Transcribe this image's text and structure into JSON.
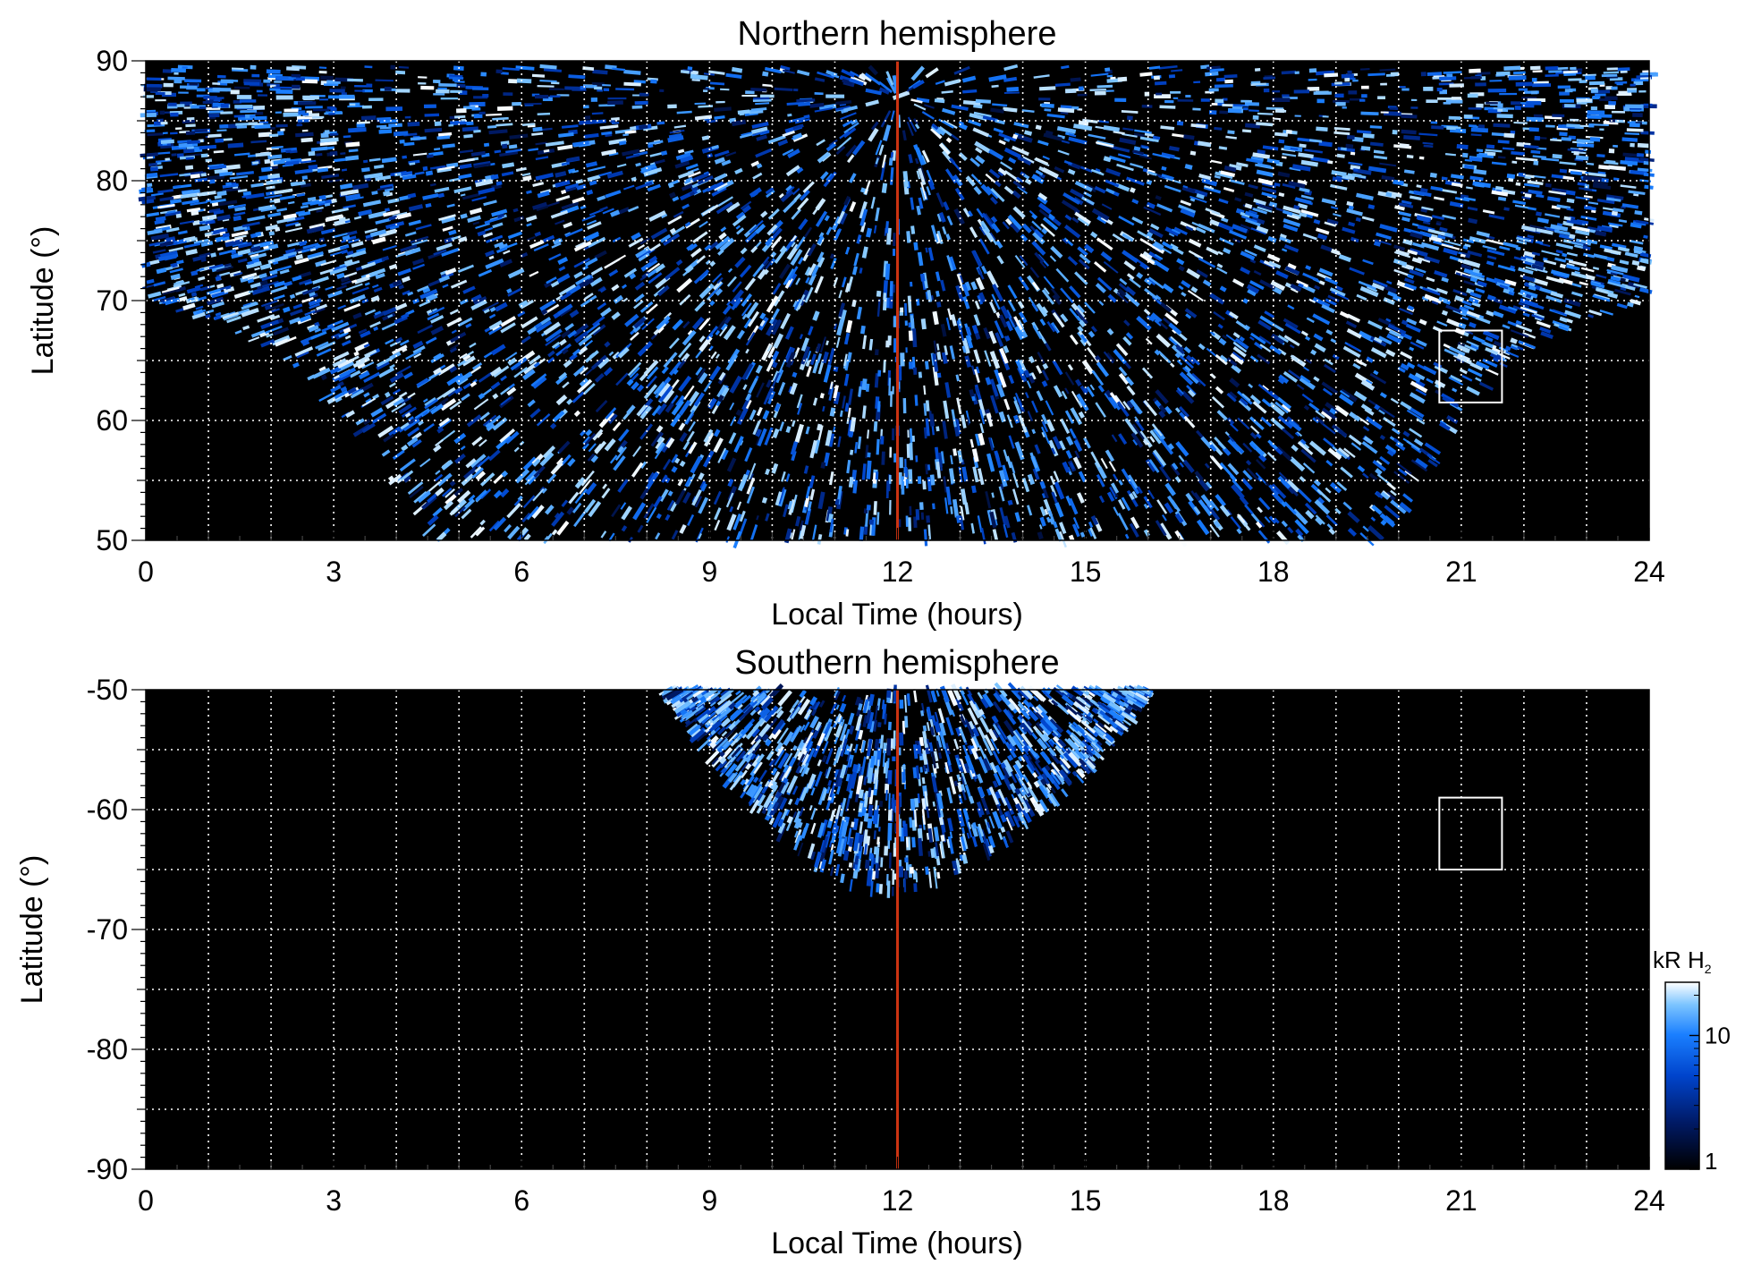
{
  "chart_data": [
    {
      "type": "heatmap",
      "title": "Northern hemisphere",
      "xlabel": "Local Time (hours)",
      "ylabel": "Latitude (°)",
      "xlim": [
        0,
        24
      ],
      "ylim": [
        50,
        90
      ],
      "x_ticks": [
        0,
        3,
        6,
        9,
        12,
        15,
        18,
        21,
        24
      ],
      "x_tick_labels": [
        "0",
        "3",
        "6",
        "9",
        "12",
        "15",
        "18",
        "21",
        "24"
      ],
      "y_ticks": [
        50,
        60,
        70,
        80,
        90
      ],
      "y_tick_labels": [
        "50",
        "60",
        "70",
        "80",
        "90"
      ],
      "grid": true,
      "grid_x_step_hours": 1,
      "grid_y_step_degrees": 5,
      "background_color": "#000000",
      "grid_color": "#ffffff",
      "noon_line": {
        "x": 12,
        "color": "#cc3311"
      },
      "highlight_box": {
        "x": [
          20.65,
          21.65
        ],
        "y": [
          61.5,
          67.5
        ],
        "color": "#ffffff"
      },
      "coverage_boundary": {
        "local_time": [
          0,
          1,
          2,
          3,
          4,
          4.5,
          6,
          8,
          10,
          12,
          14,
          16,
          18,
          19.5,
          20,
          21,
          22,
          23,
          24
        ],
        "latitude": [
          70,
          68.5,
          66,
          61.5,
          54,
          50,
          50,
          50,
          50,
          50,
          50,
          50,
          50,
          50,
          51.5,
          60.5,
          66,
          68.5,
          70
        ]
      }
    },
    {
      "type": "heatmap",
      "title": "Southern hemisphere",
      "xlabel": "Local Time (hours)",
      "ylabel": "Latitude (°)",
      "xlim": [
        0,
        24
      ],
      "ylim": [
        -90,
        -50
      ],
      "x_ticks": [
        0,
        3,
        6,
        9,
        12,
        15,
        18,
        21,
        24
      ],
      "x_tick_labels": [
        "0",
        "3",
        "6",
        "9",
        "12",
        "15",
        "18",
        "21",
        "24"
      ],
      "y_ticks": [
        -90,
        -80,
        -70,
        -60,
        -50
      ],
      "y_tick_labels": [
        "-90",
        "-80",
        "-70",
        "-60",
        "-50"
      ],
      "grid": true,
      "grid_x_step_hours": 1,
      "grid_y_step_degrees": 5,
      "background_color": "#000000",
      "grid_color": "#ffffff",
      "noon_line": {
        "x": 12,
        "color": "#cc3311"
      },
      "highlight_box": {
        "x": [
          20.65,
          21.65
        ],
        "y": [
          -65,
          -59
        ]
      },
      "coverage_boundary": {
        "local_time": [
          8.3,
          9.2,
          10.3,
          11.3,
          11.9,
          12.5,
          13.7,
          14.8,
          15.5,
          16.0
        ],
        "latitude": [
          -50,
          -57,
          -63,
          -66.5,
          -67,
          -66.5,
          -63,
          -58,
          -54,
          -50
        ]
      }
    }
  ],
  "colorbar": {
    "label_prefix": "kR H",
    "label_subscript": "2",
    "scale": "log",
    "range": [
      1,
      25
    ],
    "ticks": [
      1,
      10
    ],
    "tick_labels": [
      "1",
      "10"
    ],
    "colors": [
      "#000000",
      "#001a66",
      "#0044cc",
      "#1a7fff",
      "#7cc4ff",
      "#ffffff"
    ]
  }
}
